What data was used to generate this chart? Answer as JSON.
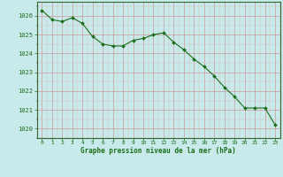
{
  "x": [
    0,
    1,
    2,
    3,
    4,
    5,
    6,
    7,
    8,
    9,
    10,
    11,
    12,
    13,
    14,
    15,
    16,
    17,
    18,
    19,
    20,
    21,
    22,
    23
  ],
  "y": [
    1026.3,
    1025.8,
    1025.7,
    1025.9,
    1025.6,
    1024.9,
    1024.5,
    1024.4,
    1024.4,
    1024.7,
    1024.8,
    1025.0,
    1025.1,
    1024.6,
    1024.2,
    1023.7,
    1023.3,
    1022.8,
    1022.2,
    1021.7,
    1021.1,
    1021.1,
    1021.1,
    1020.2
  ],
  "line_color": "#1a6e1a",
  "marker_color": "#1a6e1a",
  "bg_color": "#c8eaea",
  "grid_color_major": "#aacccc",
  "xlabel": "Graphe pression niveau de la mer (hPa)",
  "xlabel_color": "#1a6e1a",
  "tick_color": "#1a6e1a",
  "ylim": [
    1019.5,
    1026.75
  ],
  "xlim": [
    -0.5,
    23.5
  ],
  "yticks": [
    1020,
    1021,
    1022,
    1023,
    1024,
    1025,
    1026
  ],
  "xticks": [
    0,
    1,
    2,
    3,
    4,
    5,
    6,
    7,
    8,
    9,
    10,
    11,
    12,
    13,
    14,
    15,
    16,
    17,
    18,
    19,
    20,
    21,
    22,
    23
  ]
}
